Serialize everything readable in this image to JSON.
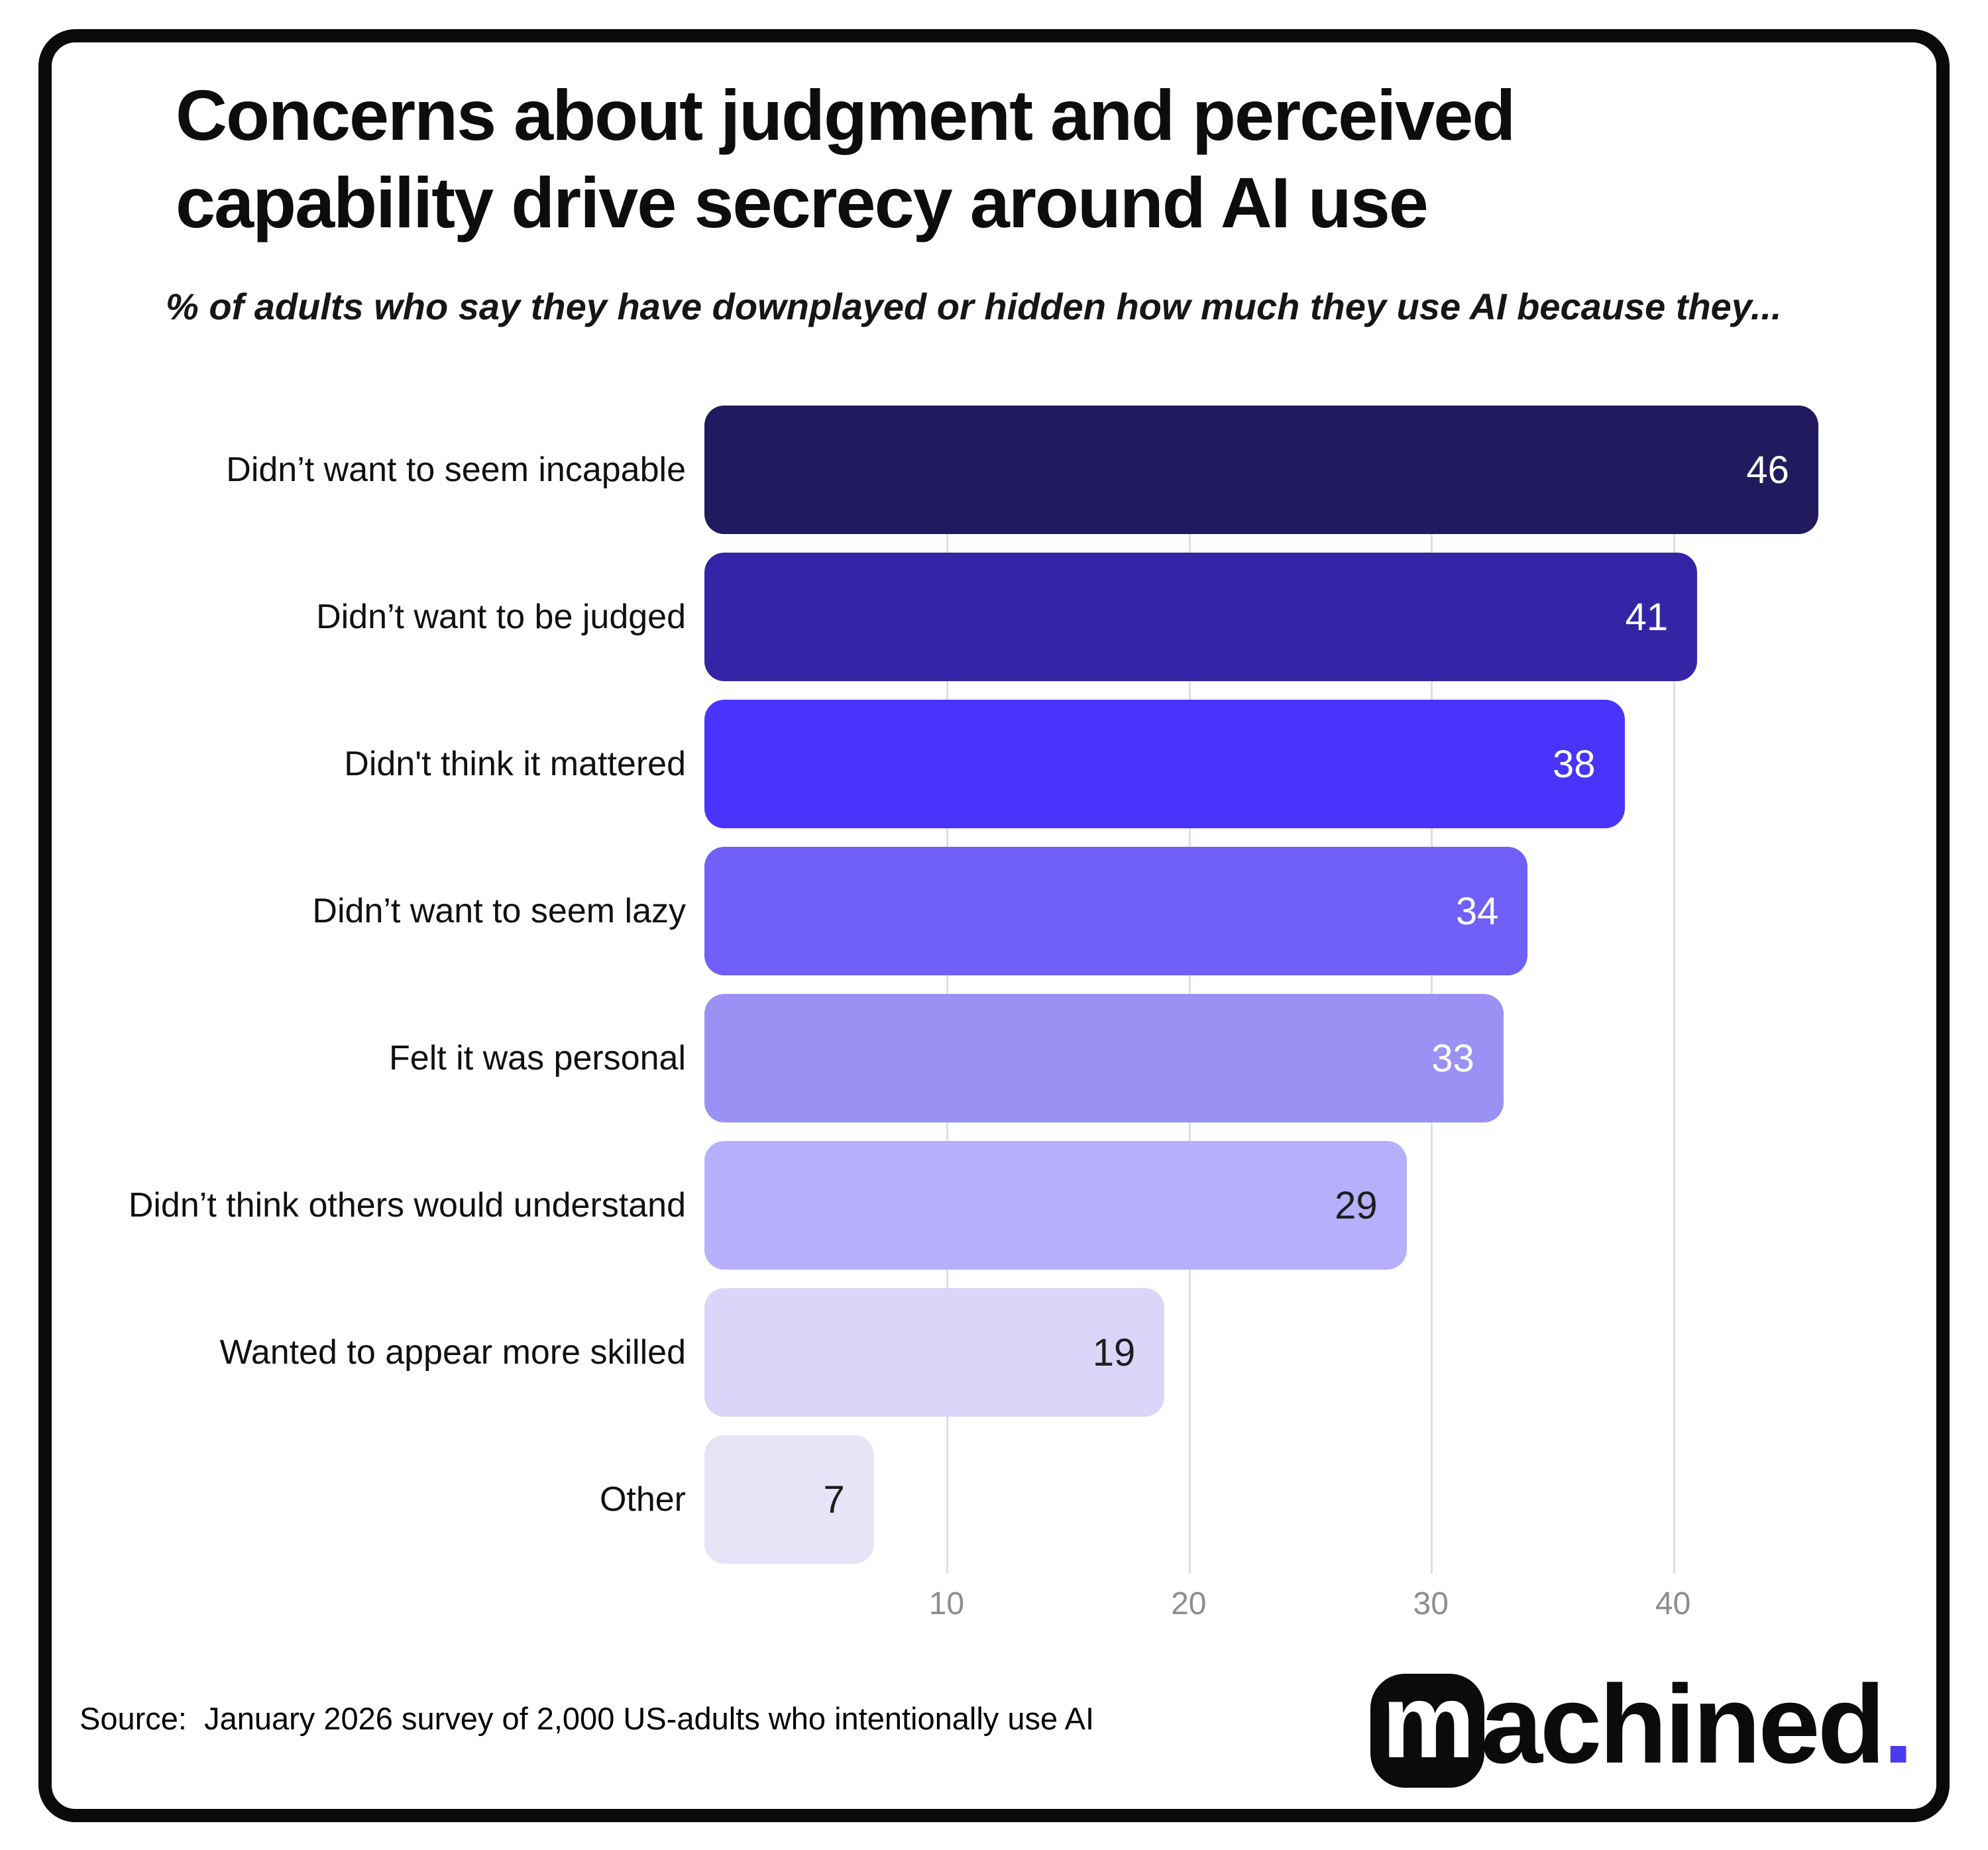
{
  "title": {
    "line1": "Concerns about judgment and perceived",
    "line2": "capability drive secrecy around AI use"
  },
  "subtitle": "% of adults who say they have downplayed or hidden how much they use AI because they...",
  "chart_data": {
    "type": "bar",
    "orientation": "horizontal",
    "categories": [
      "Didn’t want to seem incapable",
      "Didn’t want to be judged",
      "Didn't think it mattered",
      "Didn’t want to seem lazy",
      "Felt it was personal",
      "Didn’t think others would understand",
      "Wanted to appear more skilled",
      "Other"
    ],
    "values": [
      46,
      41,
      38,
      34,
      33,
      29,
      19,
      7
    ],
    "bar_colors": [
      "#221a5f",
      "#3525a6",
      "#4834fb",
      "#7060f8",
      "#9b91f4",
      "#b7aefc",
      "#d9d6fa",
      "#e6e4f7"
    ],
    "value_label_colors": [
      "#ffffff",
      "#ffffff",
      "#ffffff",
      "#ffffff",
      "#ffffff",
      "#1d1d1d",
      "#1d1d1d",
      "#1d1d1d"
    ],
    "xlim": [
      0,
      50
    ],
    "x_ticks": [
      10,
      20,
      30,
      40
    ],
    "grid": "vertical",
    "legend": "none"
  },
  "footer": {
    "source_text": "Source:  January 2026 survey of 2,000 US-adults who intentionally use AI",
    "logo": {
      "icon_letter": "m",
      "wordmark": "achined",
      "dot": ".",
      "dot_color": "#4b3bf0"
    }
  },
  "style_colors": {
    "card_border": "#0a0a0a",
    "gridline": "#dfdfeb",
    "tick_label": "#8d8d8d"
  }
}
